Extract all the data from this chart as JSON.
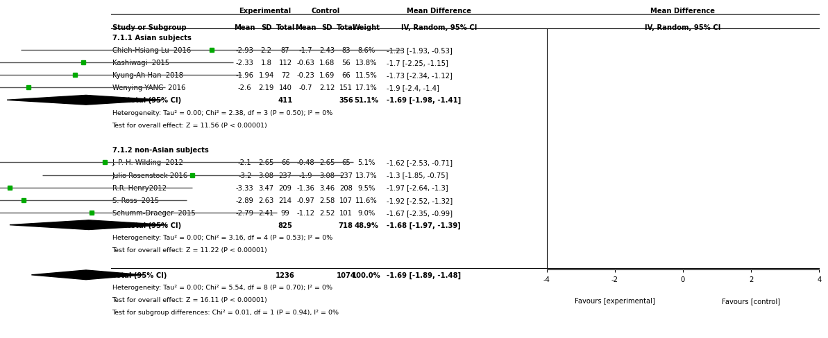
{
  "subgroup1_label": "7.1.1 Asian subjects",
  "subgroup1_studies": [
    {
      "study": "Chieh-Hsiang Lu  2016",
      "exp_mean": -2.93,
      "exp_sd": 2.2,
      "exp_n": 87,
      "ctrl_mean": -1.7,
      "ctrl_sd": 2.43,
      "ctrl_n": 83,
      "weight": "8.6%",
      "md": -1.23,
      "ci_lo": -1.93,
      "ci_hi": -0.53
    },
    {
      "study": "Kashiwagi  2015",
      "exp_mean": -2.33,
      "exp_sd": 1.8,
      "exp_n": 112,
      "ctrl_mean": -0.63,
      "ctrl_sd": 1.68,
      "ctrl_n": 56,
      "weight": "13.8%",
      "md": -1.7,
      "ci_lo": -2.25,
      "ci_hi": -1.15
    },
    {
      "study": "Kyung-Ah Han  2018",
      "exp_mean": -1.96,
      "exp_sd": 1.94,
      "exp_n": 72,
      "ctrl_mean": -0.23,
      "ctrl_sd": 1.69,
      "ctrl_n": 66,
      "weight": "11.5%",
      "md": -1.73,
      "ci_lo": -2.34,
      "ci_hi": -1.12
    },
    {
      "study": "Wenying YANG  2016",
      "exp_mean": -2.6,
      "exp_sd": 2.19,
      "exp_n": 140,
      "ctrl_mean": -0.7,
      "ctrl_sd": 2.12,
      "ctrl_n": 151,
      "weight": "17.1%",
      "md": -1.9,
      "ci_lo": -2.4,
      "ci_hi": -1.4
    }
  ],
  "subgroup1_subtotal": {
    "exp_n": 411,
    "ctrl_n": 356,
    "weight": "51.1%",
    "md": -1.69,
    "ci_lo": -1.98,
    "ci_hi": -1.41
  },
  "subgroup1_het": "Heterogeneity: Tau² = 0.00; Chi² = 2.38, df = 3 (P = 0.50); I² = 0%",
  "subgroup1_effect": "Test for overall effect: Z = 11.56 (P < 0.00001)",
  "subgroup2_label": "7.1.2 non-Asian subjects",
  "subgroup2_studies": [
    {
      "study": "J. P. H. Wilding  2012",
      "exp_mean": -2.1,
      "exp_sd": 2.65,
      "exp_n": 66,
      "ctrl_mean": -0.48,
      "ctrl_sd": 2.65,
      "ctrl_n": 65,
      "weight": "5.1%",
      "md": -1.62,
      "ci_lo": -2.53,
      "ci_hi": -0.71
    },
    {
      "study": "Julio Rosenstock 2016",
      "exp_mean": -3.2,
      "exp_sd": 3.08,
      "exp_n": 237,
      "ctrl_mean": -1.9,
      "ctrl_sd": 3.08,
      "ctrl_n": 237,
      "weight": "13.7%",
      "md": -1.3,
      "ci_lo": -1.85,
      "ci_hi": -0.75
    },
    {
      "study": "R.R. Henry2012",
      "exp_mean": -3.33,
      "exp_sd": 3.47,
      "exp_n": 209,
      "ctrl_mean": -1.36,
      "ctrl_sd": 3.46,
      "ctrl_n": 208,
      "weight": "9.5%",
      "md": -1.97,
      "ci_lo": -2.64,
      "ci_hi": -1.3
    },
    {
      "study": "S. Ross  2015",
      "exp_mean": -2.89,
      "exp_sd": 2.63,
      "exp_n": 214,
      "ctrl_mean": -0.97,
      "ctrl_sd": 2.58,
      "ctrl_n": 107,
      "weight": "11.6%",
      "md": -1.92,
      "ci_lo": -2.52,
      "ci_hi": -1.32
    },
    {
      "study": "Schumm-Draeger  2015",
      "exp_mean": -2.79,
      "exp_sd": 2.41,
      "exp_n": 99,
      "ctrl_mean": -1.12,
      "ctrl_sd": 2.52,
      "ctrl_n": 101,
      "weight": "9.0%",
      "md": -1.67,
      "ci_lo": -2.35,
      "ci_hi": -0.99
    }
  ],
  "subgroup2_subtotal": {
    "exp_n": 825,
    "ctrl_n": 718,
    "weight": "48.9%",
    "md": -1.68,
    "ci_lo": -1.97,
    "ci_hi": -1.39
  },
  "subgroup2_het": "Heterogeneity: Tau² = 0.00; Chi² = 3.16, df = 4 (P = 0.53); I² = 0%",
  "subgroup2_effect": "Test for overall effect: Z = 11.22 (P < 0.00001)",
  "total": {
    "exp_n": 1236,
    "ctrl_n": 1074,
    "weight": "100.0%",
    "md": -1.69,
    "ci_lo": -1.89,
    "ci_hi": -1.48
  },
  "total_het": "Heterogeneity: Tau² = 0.00; Chi² = 5.54, df = 8 (P = 0.70); I² = 0%",
  "total_effect": "Test for overall effect: Z = 16.11 (P < 0.00001)",
  "total_subgroup": "Test for subgroup differences: Chi² = 0.01, df = 1 (P = 0.94), I² = 0%",
  "plot_xlim": [
    -4,
    4
  ],
  "plot_xticks": [
    -4,
    -2,
    0,
    2,
    4
  ],
  "xlabel_left": "Favours [experimental]",
  "xlabel_right": "Favours [control]",
  "dot_color": "#00aa00",
  "line_color": "#555555"
}
